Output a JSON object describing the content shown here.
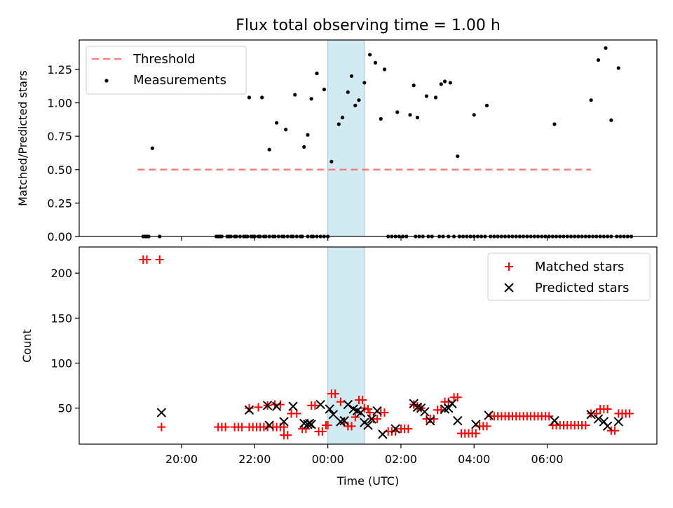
{
  "figure": {
    "title": "Flux total observing time = 1.00 h",
    "shaded_window": {
      "start_h": 24.0,
      "end_h": 25.0,
      "color": "#add8e6"
    },
    "x_tick_labels": [
      "20:00",
      "22:00",
      "00:00",
      "02:00",
      "04:00",
      "06:00"
    ]
  },
  "chart_data": [
    {
      "type": "scatter",
      "title": "Flux total observing time = 1.00 h",
      "xlabel": "",
      "ylabel": "Matched/Predicted stars",
      "ylim": [
        0,
        1.47
      ],
      "xlim": [
        17.2,
        33.0
      ],
      "x_unit": "hours since 00:00 of the first day",
      "yticks": [
        "0.00",
        "0.25",
        "0.50",
        "0.75",
        "1.00",
        "1.25"
      ],
      "legend": {
        "position": "top-left",
        "entries": [
          "Threshold",
          "Measurements"
        ]
      },
      "threshold": {
        "name": "Threshold",
        "y": 0.5,
        "x_range": [
          18.8,
          31.2
        ],
        "color": "#ff7f7f",
        "style": "dashed"
      },
      "measurements": {
        "name": "Measurements",
        "color": "#000000",
        "points": [
          [
            19.2,
            0.66
          ],
          [
            21.85,
            1.04
          ],
          [
            22.2,
            1.04
          ],
          [
            22.4,
            0.65
          ],
          [
            22.6,
            0.85
          ],
          [
            22.85,
            0.8
          ],
          [
            23.1,
            1.06
          ],
          [
            23.35,
            0.67
          ],
          [
            23.45,
            0.76
          ],
          [
            23.55,
            1.03
          ],
          [
            23.7,
            1.22
          ],
          [
            23.9,
            1.1
          ],
          [
            24.1,
            0.56
          ],
          [
            24.3,
            0.84
          ],
          [
            24.4,
            0.89
          ],
          [
            24.55,
            1.08
          ],
          [
            24.65,
            1.2
          ],
          [
            24.75,
            0.98
          ],
          [
            24.85,
            1.02
          ],
          [
            25.0,
            1.15
          ],
          [
            25.15,
            1.36
          ],
          [
            25.3,
            1.3
          ],
          [
            25.45,
            0.88
          ],
          [
            25.55,
            1.25
          ],
          [
            25.9,
            0.93
          ],
          [
            26.25,
            0.91
          ],
          [
            26.35,
            1.13
          ],
          [
            26.45,
            0.89
          ],
          [
            26.7,
            1.05
          ],
          [
            26.95,
            1.04
          ],
          [
            27.1,
            1.14
          ],
          [
            27.2,
            1.16
          ],
          [
            27.35,
            1.15
          ],
          [
            27.55,
            0.6
          ],
          [
            28.0,
            0.91
          ],
          [
            28.35,
            0.98
          ],
          [
            30.2,
            0.84
          ],
          [
            31.2,
            1.02
          ],
          [
            31.4,
            1.32
          ],
          [
            31.6,
            1.41
          ],
          [
            31.75,
            0.87
          ],
          [
            31.95,
            1.26
          ]
        ],
        "zero_points_x": [
          18.95,
          19.0,
          19.05,
          19.1,
          19.4,
          20.95,
          21.0,
          21.05,
          21.1,
          21.25,
          21.3,
          21.35,
          21.45,
          21.5,
          21.6,
          21.7,
          21.75,
          21.8,
          21.9,
          21.95,
          22.0,
          22.1,
          22.15,
          22.25,
          22.3,
          22.4,
          22.5,
          22.55,
          22.65,
          22.75,
          22.8,
          22.9,
          23.0,
          23.05,
          23.15,
          23.25,
          23.3,
          23.45,
          23.55,
          23.6,
          23.7,
          23.8,
          23.9,
          24.0,
          25.65,
          25.75,
          25.85,
          25.95,
          26.05,
          26.15,
          26.4,
          26.5,
          26.6,
          26.75,
          26.85,
          27.05,
          27.15,
          27.3,
          27.45,
          27.6,
          27.7,
          27.8,
          27.9,
          28.0,
          28.1,
          28.2,
          28.3,
          28.45,
          28.55,
          28.65,
          28.75,
          28.85,
          28.95,
          29.05,
          29.15,
          29.25,
          29.35,
          29.45,
          29.55,
          29.65,
          29.75,
          29.85,
          29.95,
          30.05,
          30.15,
          30.25,
          30.35,
          30.45,
          30.55,
          30.65,
          30.75,
          30.85,
          30.95,
          31.05,
          31.15,
          31.25,
          31.35,
          31.45,
          31.55,
          31.65,
          31.75,
          31.9,
          32.0,
          32.1,
          32.2,
          32.3
        ]
      }
    },
    {
      "type": "scatter",
      "title": "",
      "xlabel": "Time (UTC)",
      "ylabel": "Count",
      "ylim": [
        10,
        229
      ],
      "xlim": [
        17.2,
        33.0
      ],
      "x_unit": "hours since 00:00 of the first day",
      "yticks": [
        "50",
        "100",
        "150",
        "200"
      ],
      "legend": {
        "position": "top-right",
        "entries": [
          "Matched stars",
          "Predicted stars"
        ]
      },
      "series": [
        {
          "name": "Matched stars",
          "marker": "+",
          "color": "#ff0000",
          "points": [
            [
              18.95,
              215
            ],
            [
              19.05,
              215
            ],
            [
              19.4,
              215
            ],
            [
              19.45,
              29
            ],
            [
              21.0,
              29
            ],
            [
              21.1,
              29
            ],
            [
              21.2,
              29
            ],
            [
              21.45,
              29
            ],
            [
              21.55,
              29
            ],
            [
              21.65,
              29
            ],
            [
              21.85,
              29
            ],
            [
              21.95,
              29
            ],
            [
              22.05,
              29
            ],
            [
              22.15,
              29
            ],
            [
              22.25,
              29
            ],
            [
              22.35,
              29
            ],
            [
              22.5,
              29
            ],
            [
              22.6,
              29
            ],
            [
              22.7,
              29
            ],
            [
              22.8,
              29
            ],
            [
              21.85,
              50
            ],
            [
              22.1,
              51
            ],
            [
              22.35,
              53
            ],
            [
              22.55,
              54
            ],
            [
              22.7,
              54
            ],
            [
              22.8,
              20
            ],
            [
              22.9,
              20
            ],
            [
              23.0,
              44
            ],
            [
              23.15,
              44
            ],
            [
              23.3,
              27
            ],
            [
              23.4,
              27
            ],
            [
              23.55,
              53
            ],
            [
              23.65,
              53
            ],
            [
              23.75,
              24
            ],
            [
              23.85,
              24
            ],
            [
              23.95,
              31
            ],
            [
              24.0,
              31
            ],
            [
              24.1,
              66
            ],
            [
              24.2,
              66
            ],
            [
              24.35,
              57
            ],
            [
              24.45,
              34
            ],
            [
              24.55,
              30
            ],
            [
              24.65,
              30
            ],
            [
              24.75,
              40
            ],
            [
              24.85,
              59
            ],
            [
              24.95,
              59
            ],
            [
              25.0,
              50
            ],
            [
              25.1,
              49
            ],
            [
              25.15,
              45
            ],
            [
              25.25,
              38
            ],
            [
              25.35,
              38
            ],
            [
              25.45,
              45
            ],
            [
              25.55,
              45
            ],
            [
              25.65,
              24
            ],
            [
              25.75,
              24
            ],
            [
              25.85,
              24
            ],
            [
              26.0,
              27
            ],
            [
              26.1,
              27
            ],
            [
              26.2,
              27
            ],
            [
              26.35,
              54
            ],
            [
              26.45,
              52
            ],
            [
              26.55,
              50
            ],
            [
              26.7,
              38
            ],
            [
              26.8,
              38
            ],
            [
              26.9,
              38
            ],
            [
              27.0,
              48
            ],
            [
              27.1,
              48
            ],
            [
              27.2,
              57
            ],
            [
              27.3,
              57
            ],
            [
              27.45,
              62
            ],
            [
              27.55,
              62
            ],
            [
              27.65,
              22
            ],
            [
              27.75,
              22
            ],
            [
              27.85,
              22
            ],
            [
              27.95,
              22
            ],
            [
              28.05,
              22
            ],
            [
              28.15,
              30
            ],
            [
              28.25,
              30
            ],
            [
              28.35,
              30
            ],
            [
              28.45,
              41
            ],
            [
              28.55,
              41
            ],
            [
              28.65,
              41
            ],
            [
              28.75,
              41
            ],
            [
              28.85,
              41
            ],
            [
              28.95,
              41
            ],
            [
              29.05,
              41
            ],
            [
              29.15,
              41
            ],
            [
              29.25,
              41
            ],
            [
              29.35,
              41
            ],
            [
              29.45,
              41
            ],
            [
              29.55,
              41
            ],
            [
              29.65,
              41
            ],
            [
              29.75,
              41
            ],
            [
              29.85,
              41
            ],
            [
              29.95,
              41
            ],
            [
              30.05,
              41
            ],
            [
              30.15,
              31
            ],
            [
              30.25,
              31
            ],
            [
              30.35,
              31
            ],
            [
              30.45,
              31
            ],
            [
              30.55,
              31
            ],
            [
              30.65,
              31
            ],
            [
              30.75,
              31
            ],
            [
              30.85,
              31
            ],
            [
              30.95,
              31
            ],
            [
              31.05,
              31
            ],
            [
              31.2,
              44
            ],
            [
              31.35,
              44
            ],
            [
              31.45,
              49
            ],
            [
              31.55,
              49
            ],
            [
              31.65,
              49
            ],
            [
              31.75,
              25
            ],
            [
              31.85,
              25
            ],
            [
              31.95,
              44
            ],
            [
              32.05,
              44
            ],
            [
              32.15,
              44
            ],
            [
              32.25,
              44
            ]
          ]
        },
        {
          "name": "Predicted stars",
          "marker": "x",
          "color": "#000000",
          "points": [
            [
              19.45,
              45
            ],
            [
              21.85,
              48
            ],
            [
              22.35,
              53
            ],
            [
              22.4,
              31
            ],
            [
              22.6,
              52
            ],
            [
              22.8,
              35
            ],
            [
              23.05,
              52
            ],
            [
              23.35,
              33
            ],
            [
              23.45,
              32
            ],
            [
              23.5,
              33
            ],
            [
              23.55,
              32
            ],
            [
              23.8,
              54
            ],
            [
              24.05,
              49
            ],
            [
              24.15,
              43
            ],
            [
              24.35,
              35
            ],
            [
              24.45,
              36
            ],
            [
              24.55,
              54
            ],
            [
              24.7,
              49
            ],
            [
              24.8,
              47
            ],
            [
              24.9,
              45
            ],
            [
              25.0,
              34
            ],
            [
              25.1,
              31
            ],
            [
              25.2,
              38
            ],
            [
              25.35,
              47
            ],
            [
              25.5,
              21
            ],
            [
              25.85,
              27
            ],
            [
              26.35,
              55
            ],
            [
              26.45,
              51
            ],
            [
              26.55,
              50
            ],
            [
              26.65,
              46
            ],
            [
              26.8,
              36
            ],
            [
              27.2,
              49
            ],
            [
              27.3,
              50
            ],
            [
              27.4,
              55
            ],
            [
              27.55,
              36
            ],
            [
              28.05,
              32
            ],
            [
              28.4,
              42
            ],
            [
              30.2,
              36
            ],
            [
              31.2,
              43
            ],
            [
              31.4,
              38
            ],
            [
              31.55,
              35
            ],
            [
              31.65,
              30
            ],
            [
              31.95,
              35
            ]
          ]
        }
      ]
    }
  ]
}
